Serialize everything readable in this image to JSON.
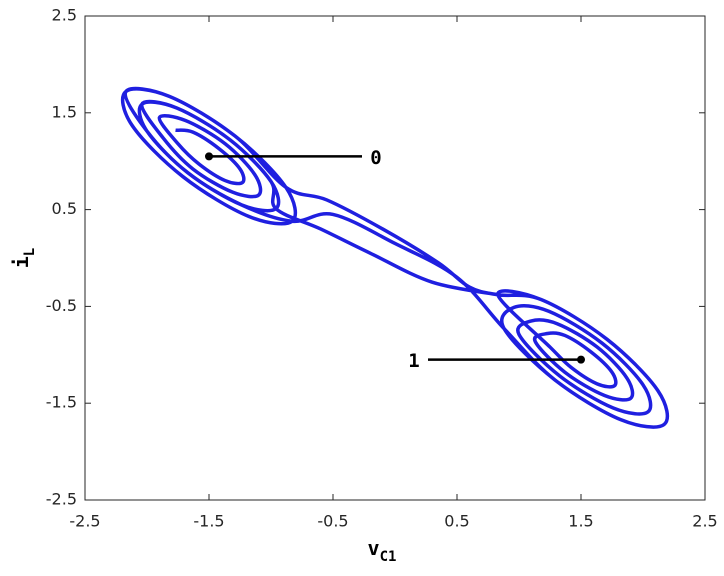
{
  "chart_data": {
    "type": "line",
    "x_label": "v",
    "x_label_sub": "C1",
    "y_label": "i",
    "y_label_sub": "L",
    "xlim": [
      -2.5,
      2.5
    ],
    "xticks": [
      -2.5,
      -1.5,
      -0.5,
      0.5,
      1.5,
      2.5
    ],
    "ylim": [
      -2.5,
      2.5
    ],
    "yticks": [
      -2.5,
      -1.5,
      -0.5,
      0.5,
      1.5,
      2.5
    ],
    "series": [
      {
        "color": "#1f1fe0",
        "x": [
          -1.77,
          -1.63,
          -1.42,
          -1.25,
          -1.23,
          -1.37,
          -1.58,
          -1.75,
          -1.9,
          -1.69,
          -1.37,
          -1.13,
          -1.1,
          -1.31,
          -1.63,
          -1.87,
          -2.04,
          -1.76,
          -1.33,
          -1.0,
          -0.96,
          -1.24,
          -1.67,
          -2.0,
          -2.17,
          -1.82,
          -1.29,
          -0.88,
          -0.83,
          -1.18,
          -1.71,
          -2.12,
          -2.17,
          -1.82,
          -1.29,
          -0.88,
          -0.55,
          -0.1,
          0.35,
          0.6,
          0.83,
          1.18,
          1.71,
          2.12,
          2.17,
          1.82,
          1.29,
          0.88,
          0.96,
          1.24,
          1.67,
          2.0,
          2.04,
          1.76,
          1.33,
          1.0,
          1.1,
          1.31,
          1.63,
          1.87,
          1.9,
          1.69,
          1.37,
          1.13,
          1.23,
          1.37,
          1.58,
          1.75,
          1.77,
          1.63,
          1.42,
          1.25,
          0.83,
          1.18,
          1.71,
          2.12,
          2.17,
          1.82,
          1.29,
          0.88,
          0.5,
          0.0,
          -0.5,
          -0.83,
          -1.24,
          -1.67,
          -2.0,
          -2.04,
          -1.76,
          -1.33,
          -1.0,
          -0.96,
          -0.6,
          -0.2,
          0.3,
          0.83
        ],
        "y": [
          1.32,
          1.3,
          1.13,
          0.92,
          0.78,
          0.8,
          0.97,
          1.18,
          1.45,
          1.42,
          1.18,
          0.86,
          0.65,
          0.68,
          0.92,
          1.24,
          1.59,
          1.55,
          1.22,
          0.79,
          0.51,
          0.55,
          0.88,
          1.31,
          1.72,
          1.67,
          1.26,
          0.73,
          0.38,
          0.43,
          0.84,
          1.37,
          1.72,
          1.67,
          1.26,
          0.73,
          0.6,
          0.3,
          -0.05,
          -0.3,
          -0.38,
          -0.43,
          -0.84,
          -1.37,
          -1.72,
          -1.67,
          -1.26,
          -0.73,
          -0.51,
          -0.55,
          -0.88,
          -1.31,
          -1.59,
          -1.55,
          -1.22,
          -0.79,
          -0.65,
          -0.68,
          -0.92,
          -1.24,
          -1.45,
          -1.42,
          -1.18,
          -0.86,
          -0.78,
          -0.8,
          -0.97,
          -1.18,
          -1.32,
          -1.3,
          -1.13,
          -0.92,
          -0.38,
          -0.43,
          -0.84,
          -1.37,
          -1.72,
          -1.67,
          -1.26,
          -0.73,
          -0.2,
          0.15,
          0.45,
          0.38,
          0.55,
          0.88,
          1.31,
          1.59,
          1.55,
          1.22,
          0.79,
          0.51,
          0.3,
          0.05,
          -0.25,
          -0.38
        ]
      }
    ],
    "annotations": [
      {
        "text": "0",
        "x": -1.5,
        "y": 1.05,
        "side": "right"
      },
      {
        "text": "1",
        "x": 1.5,
        "y": -1.05,
        "side": "left"
      }
    ]
  }
}
